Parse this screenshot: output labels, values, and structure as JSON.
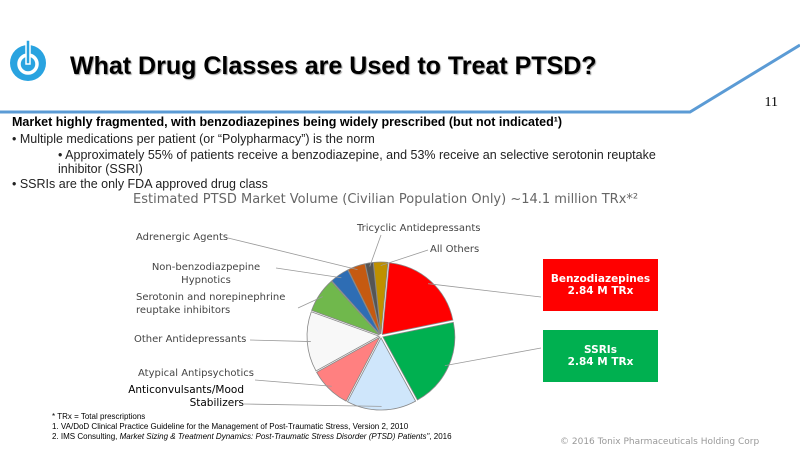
{
  "header": {
    "title": "What Drug Classes are Used to Treat PTSD?",
    "slide_number": "11",
    "logo_icon": "power-icon",
    "accent": "#5b9bd5"
  },
  "body": {
    "headline": "Market highly fragmented, with benzodiazepines being widely prescribed (but not indicated¹)",
    "bullets": [
      "•  Multiple medications per patient (or “Polypharmacy”) is the norm",
      "•  Approximately 55% of patients receive a benzodiazepine, and 53% receive an selective serotonin reuptake inhibitor (SSRI)",
      "•  SSRIs are the only FDA approved drug class"
    ]
  },
  "chart_data": {
    "type": "pie",
    "title": "Estimated PTSD Market Volume (Civilian Population Only) ~14.1 million TRx*²",
    "units": "million TRx (approx.)",
    "slices": [
      {
        "label": "All Others",
        "value": 0.45,
        "color": "#bf9000"
      },
      {
        "label": "Benzodiazepines",
        "value": 2.84,
        "color": "#ff0000"
      },
      {
        "label": "SSRIs",
        "value": 2.84,
        "color": "#00b050"
      },
      {
        "label": "Anticonvulsants/Mood Stabilizers",
        "value": 2.2,
        "color": "#cfe6fb"
      },
      {
        "label": "Atypical Antipsychotics",
        "value": 1.3,
        "color": "#ff8080"
      },
      {
        "label": "Other Antidepressants",
        "value": 1.9,
        "color": "#f8f8f8"
      },
      {
        "label": "Serotonin and norepinephrine reuptake inhibitors",
        "value": 1.1,
        "color": "#70b84c"
      },
      {
        "label": "Non-benzodiazpepine Hypnotics",
        "value": 0.6,
        "color": "#2e6db4"
      },
      {
        "label": "Adrenergic Agents",
        "value": 0.55,
        "color": "#c55a11"
      },
      {
        "label": "Tricyclic Antidepressants",
        "value": 0.25,
        "color": "#555555"
      }
    ],
    "callouts": [
      {
        "line1": "Benzodiazepines",
        "line2": "2.84 M TRx",
        "color": "#ff0000"
      },
      {
        "line1": "SSRIs",
        "line2": "2.84 M TRx",
        "color": "#00b050"
      }
    ]
  },
  "footnotes": {
    "trx": "* TRx = Total prescriptions",
    "f1": "1. VA/DoD Clinical Practice Guideline for the Management of Post-Traumatic Stress, Version 2, 2010",
    "f2_prefix": "2. IMS Consulting, ",
    "f2_title": "Market Sizing & Treatment Dynamics: Post-Traumatic Stress Disorder (PTSD) Patients\"",
    "f2_suffix": ", 2016",
    "copyright": "© 2016 Tonix Pharmaceuticals Holding Corp"
  }
}
